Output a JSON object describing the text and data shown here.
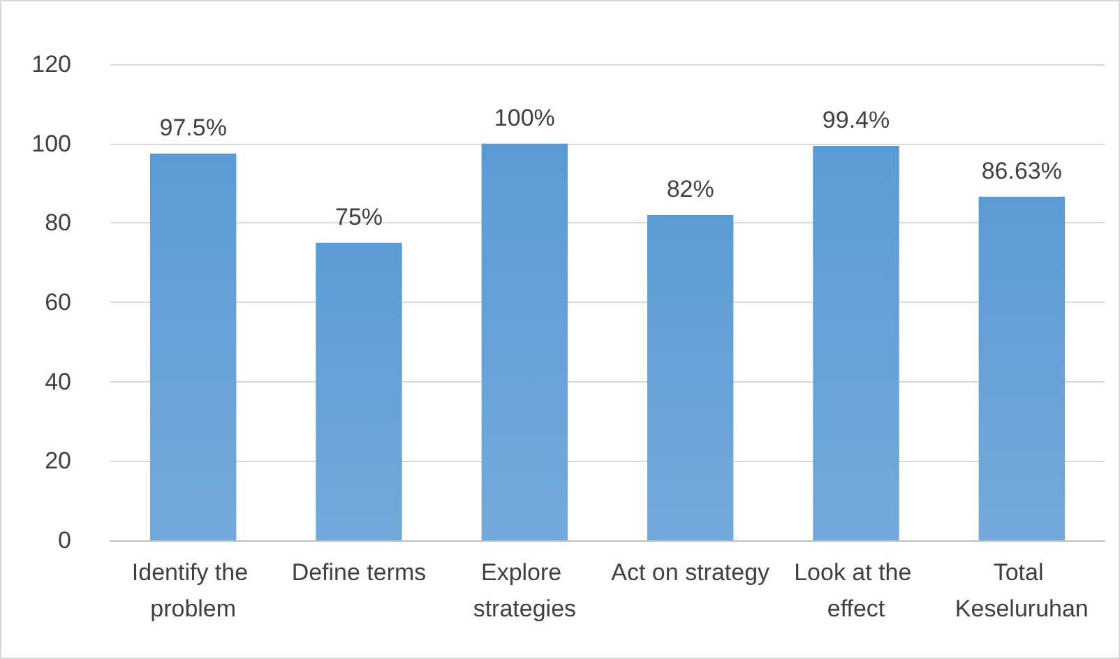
{
  "chart_data": {
    "type": "bar",
    "categories": [
      "Identify the problem",
      "Define terms",
      "Explore strategies",
      "Act on strategy",
      "Look at the effect",
      "Total Keseluruhan"
    ],
    "values": [
      97.5,
      75,
      100,
      82,
      99.4,
      86.63
    ],
    "value_labels": [
      "97.5%",
      "75%",
      "100%",
      "82%",
      "99.4%",
      "86.63%"
    ],
    "color": "#5b9bd5",
    "ylim": [
      0,
      120
    ],
    "yticks": [
      0,
      20,
      40,
      60,
      80,
      100,
      120
    ],
    "grid": "y"
  }
}
